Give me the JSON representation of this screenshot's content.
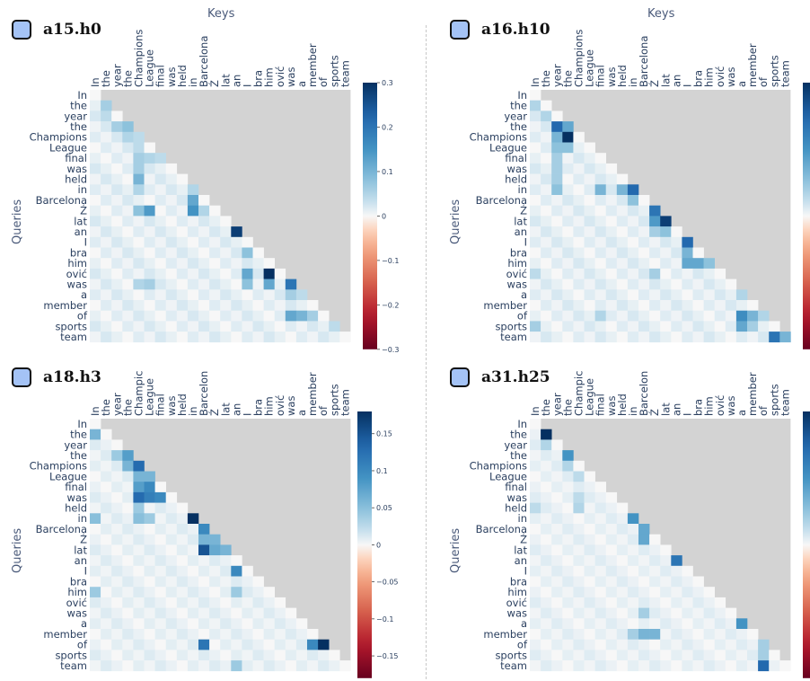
{
  "tokens": [
    "In",
    "the",
    "year",
    "the",
    "Champions",
    "League",
    "final",
    "was",
    "held",
    "in",
    "Barcelona",
    "Ź",
    "lat",
    "an",
    "I",
    "bra",
    "him",
    "ović",
    "was",
    "a",
    "member",
    "of",
    "sports",
    "team"
  ],
  "key_tokens_truncated": [
    "In",
    "the",
    "year",
    "the",
    "Champic",
    "League",
    "final",
    "was",
    "held",
    "in",
    "Barcelon",
    "Ź",
    "lat",
    "an",
    "I",
    "bra",
    "him",
    "ović",
    "was",
    "a",
    "member",
    "of",
    "sports",
    "team"
  ],
  "axis": {
    "keys": "Keys",
    "queries": "Queries"
  },
  "colors": {
    "mask": "#d3d3d3",
    "neg": "#67001f",
    "mid": "#f7f7f7",
    "pos": "#053061",
    "swatch": "#a4c3f6"
  },
  "chart_data": [
    {
      "type": "heatmap",
      "title": "a15.h0",
      "key_labels": "full",
      "zmax": 0.3,
      "colorbar_ticks": [
        "0.3",
        "0.2",
        "0.1",
        "0",
        "−0.1",
        "−0.2",
        "−0.3"
      ],
      "colorbar_values": [
        0.3,
        0.2,
        0.1,
        0,
        -0.1,
        -0.2,
        -0.3
      ],
      "highlights": [
        [
          1,
          1,
          0.06
        ],
        [
          2,
          1,
          0.04
        ],
        [
          3,
          2,
          0.06
        ],
        [
          3,
          3,
          0.08
        ],
        [
          4,
          3,
          0.05
        ],
        [
          4,
          4,
          0.04
        ],
        [
          5,
          4,
          0.04
        ],
        [
          6,
          4,
          0.06
        ],
        [
          6,
          5,
          0.05
        ],
        [
          6,
          6,
          0.04
        ],
        [
          7,
          4,
          0.06
        ],
        [
          8,
          4,
          0.1
        ],
        [
          9,
          4,
          0.05
        ],
        [
          9,
          9,
          0.05
        ],
        [
          10,
          9,
          0.12
        ],
        [
          11,
          4,
          0.08
        ],
        [
          11,
          5,
          0.14
        ],
        [
          11,
          9,
          0.15
        ],
        [
          11,
          10,
          0.05
        ],
        [
          13,
          13,
          0.28
        ],
        [
          15,
          14,
          0.08
        ],
        [
          17,
          14,
          0.12
        ],
        [
          17,
          16,
          0.3
        ],
        [
          17,
          18,
          0.24
        ],
        [
          18,
          14,
          0.08
        ],
        [
          18,
          16,
          0.12
        ],
        [
          18,
          18,
          0.2
        ],
        [
          19,
          18,
          0.06
        ],
        [
          19,
          19,
          0.04
        ],
        [
          21,
          18,
          0.12
        ],
        [
          21,
          19,
          0.1
        ],
        [
          21,
          20,
          0.06
        ],
        [
          21,
          22,
          0.06
        ],
        [
          22,
          22,
          0.04
        ],
        [
          18,
          4,
          0.05
        ],
        [
          18,
          5,
          0.06
        ]
      ],
      "base": 0.02
    },
    {
      "type": "heatmap",
      "title": "a16.h10",
      "key_labels": "full",
      "zmax": 0.3,
      "colorbar_ticks": [],
      "colorbar_values": [],
      "highlights": [
        [
          1,
          0,
          0.05
        ],
        [
          2,
          1,
          0.05
        ],
        [
          3,
          2,
          0.22
        ],
        [
          3,
          3,
          0.12
        ],
        [
          4,
          2,
          0.1
        ],
        [
          4,
          3,
          0.3
        ],
        [
          5,
          2,
          0.08
        ],
        [
          5,
          3,
          0.08
        ],
        [
          6,
          2,
          0.06
        ],
        [
          7,
          2,
          0.06
        ],
        [
          8,
          2,
          0.06
        ],
        [
          9,
          2,
          0.08
        ],
        [
          9,
          6,
          0.1
        ],
        [
          9,
          8,
          0.1
        ],
        [
          9,
          9,
          0.22
        ],
        [
          10,
          9,
          0.08
        ],
        [
          11,
          11,
          0.2
        ],
        [
          12,
          11,
          0.14
        ],
        [
          12,
          12,
          0.28
        ],
        [
          13,
          11,
          0.06
        ],
        [
          13,
          12,
          0.08
        ],
        [
          14,
          14,
          0.22
        ],
        [
          15,
          14,
          0.1
        ],
        [
          16,
          14,
          0.12
        ],
        [
          16,
          15,
          0.12
        ],
        [
          16,
          16,
          0.08
        ],
        [
          17,
          0,
          0.04
        ],
        [
          17,
          11,
          0.06
        ],
        [
          18,
          19,
          0.08
        ],
        [
          19,
          19,
          0.05
        ],
        [
          21,
          19,
          0.16
        ],
        [
          21,
          20,
          0.1
        ],
        [
          21,
          21,
          0.05
        ],
        [
          22,
          0,
          0.06
        ],
        [
          22,
          19,
          0.12
        ],
        [
          22,
          20,
          0.06
        ],
        [
          23,
          22,
          0.2
        ],
        [
          23,
          23,
          0.1
        ],
        [
          21,
          6,
          0.05
        ]
      ],
      "base": 0.02
    },
    {
      "type": "heatmap",
      "title": "a18.h3",
      "key_labels": "truncated",
      "zmax": 0.18,
      "colorbar_ticks": [
        "0.15",
        "0.1",
        "0.05",
        "0",
        "−0.05",
        "−0.1",
        "−0.15"
      ],
      "colorbar_values": [
        0.15,
        0.1,
        0.05,
        0,
        -0.05,
        -0.1,
        -0.15
      ],
      "highlights": [
        [
          1,
          0,
          0.06
        ],
        [
          3,
          2,
          0.04
        ],
        [
          3,
          3,
          0.08
        ],
        [
          4,
          3,
          0.06
        ],
        [
          4,
          4,
          0.13
        ],
        [
          5,
          4,
          0.06
        ],
        [
          5,
          5,
          0.06
        ],
        [
          6,
          4,
          0.08
        ],
        [
          6,
          5,
          0.1
        ],
        [
          7,
          4,
          0.13
        ],
        [
          7,
          5,
          0.11
        ],
        [
          7,
          6,
          0.1
        ],
        [
          8,
          4,
          0.04
        ],
        [
          9,
          0,
          0.05
        ],
        [
          9,
          4,
          0.05
        ],
        [
          9,
          5,
          0.04
        ],
        [
          9,
          9,
          0.18
        ],
        [
          10,
          10,
          0.1
        ],
        [
          11,
          10,
          0.06
        ],
        [
          11,
          11,
          0.06
        ],
        [
          12,
          10,
          0.15
        ],
        [
          12,
          11,
          0.07
        ],
        [
          12,
          12,
          0.06
        ],
        [
          14,
          13,
          0.1
        ],
        [
          16,
          0,
          0.04
        ],
        [
          16,
          13,
          0.04
        ],
        [
          21,
          10,
          0.12
        ],
        [
          21,
          20,
          0.1
        ],
        [
          21,
          21,
          0.18
        ],
        [
          23,
          13,
          0.04
        ]
      ],
      "base": 0.01
    },
    {
      "type": "heatmap",
      "title": "a31.h25",
      "key_labels": "truncated",
      "zmax": 0.3,
      "colorbar_ticks": [],
      "colorbar_values": [],
      "highlights": [
        [
          1,
          1,
          0.3
        ],
        [
          2,
          1,
          0.05
        ],
        [
          3,
          3,
          0.15
        ],
        [
          4,
          3,
          0.05
        ],
        [
          5,
          4,
          0.04
        ],
        [
          7,
          4,
          0.04
        ],
        [
          8,
          0,
          0.04
        ],
        [
          8,
          4,
          0.05
        ],
        [
          9,
          9,
          0.15
        ],
        [
          10,
          10,
          0.12
        ],
        [
          11,
          10,
          0.12
        ],
        [
          13,
          13,
          0.2
        ],
        [
          18,
          10,
          0.06
        ],
        [
          19,
          19,
          0.15
        ],
        [
          20,
          9,
          0.06
        ],
        [
          20,
          10,
          0.1
        ],
        [
          20,
          11,
          0.1
        ],
        [
          21,
          21,
          0.06
        ],
        [
          22,
          21,
          0.06
        ],
        [
          23,
          21,
          0.22
        ]
      ],
      "base": 0.015
    }
  ]
}
